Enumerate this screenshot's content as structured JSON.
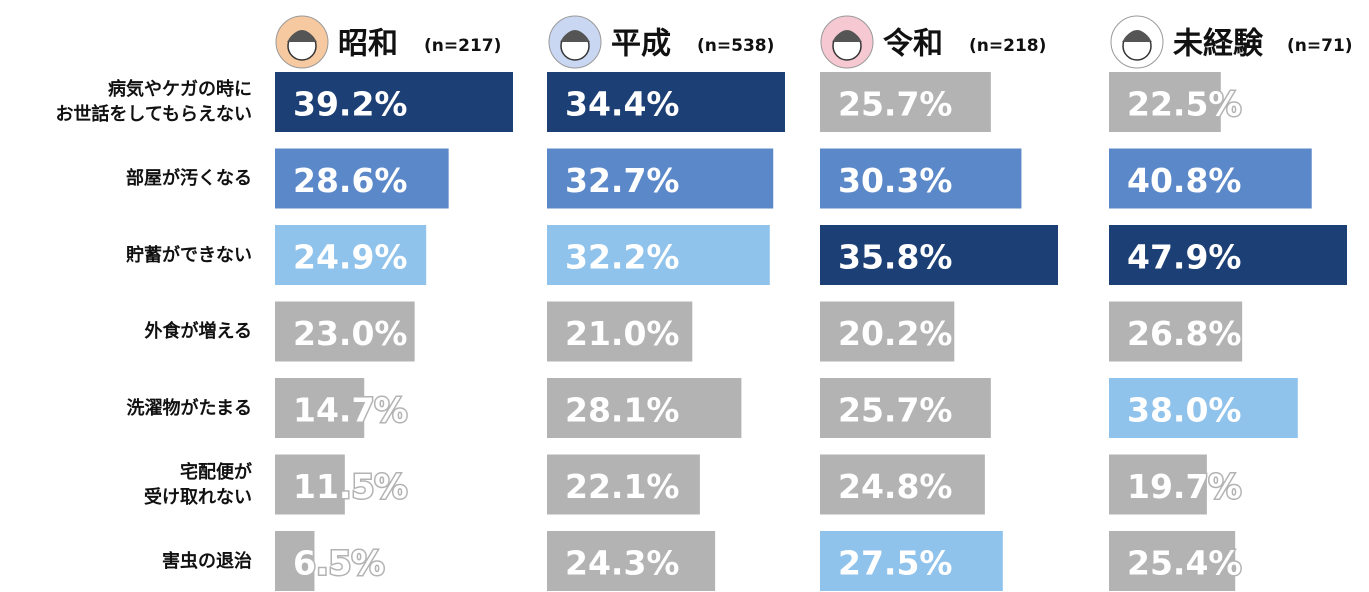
{
  "chart_data": {
    "type": "bar",
    "categories": [
      "病気やケガの時に\nお世話をしてもらえない",
      "部屋が汚くなる",
      "貯蓄ができない",
      "外食が増える",
      "洗濯物がたまる",
      "宅配便が\n受け取れない",
      "害虫の退治"
    ],
    "series": [
      {
        "name": "昭和",
        "n": "(n=217)",
        "values": [
          39.2,
          28.6,
          24.9,
          23.0,
          14.7,
          11.5,
          6.5
        ],
        "value_labels": [
          "39.2%",
          "28.6%",
          "24.9%",
          "23.0%",
          "14.7%",
          "11.5%",
          "6.5%"
        ],
        "colors": [
          "#1c3f75",
          "#5b88c9",
          "#90c3ec",
          "#b3b3b3",
          "#b3b3b3",
          "#b3b3b3",
          "#b3b3b3"
        ]
      },
      {
        "name": "平成",
        "n": "(n=538)",
        "values": [
          34.4,
          32.7,
          32.2,
          21.0,
          28.1,
          22.1,
          24.3
        ],
        "value_labels": [
          "34.4%",
          "32.7%",
          "32.2%",
          "21.0%",
          "28.1%",
          "22.1%",
          "24.3%"
        ],
        "colors": [
          "#1c3f75",
          "#5b88c9",
          "#90c3ec",
          "#b3b3b3",
          "#b3b3b3",
          "#b3b3b3",
          "#b3b3b3"
        ]
      },
      {
        "name": "令和",
        "n": "(n=218)",
        "values": [
          25.7,
          30.3,
          35.8,
          20.2,
          25.7,
          24.8,
          27.5
        ],
        "value_labels": [
          "25.7%",
          "30.3%",
          "35.8%",
          "20.2%",
          "25.7%",
          "24.8%",
          "27.5%"
        ],
        "colors": [
          "#b3b3b3",
          "#5b88c9",
          "#1c3f75",
          "#b3b3b3",
          "#b3b3b3",
          "#b3b3b3",
          "#90c3ec"
        ]
      },
      {
        "name": "未経験",
        "n": "(n=71)",
        "values": [
          22.5,
          40.8,
          47.9,
          26.8,
          38.0,
          19.7,
          25.4
        ],
        "value_labels": [
          "22.5%",
          "40.8%",
          "47.9%",
          "26.8%",
          "38.0%",
          "19.7%",
          "25.4%"
        ],
        "colors": [
          "#b3b3b3",
          "#5b88c9",
          "#1c3f75",
          "#b3b3b3",
          "#90c3ec",
          "#b3b3b3",
          "#b3b3b3"
        ]
      }
    ]
  }
}
